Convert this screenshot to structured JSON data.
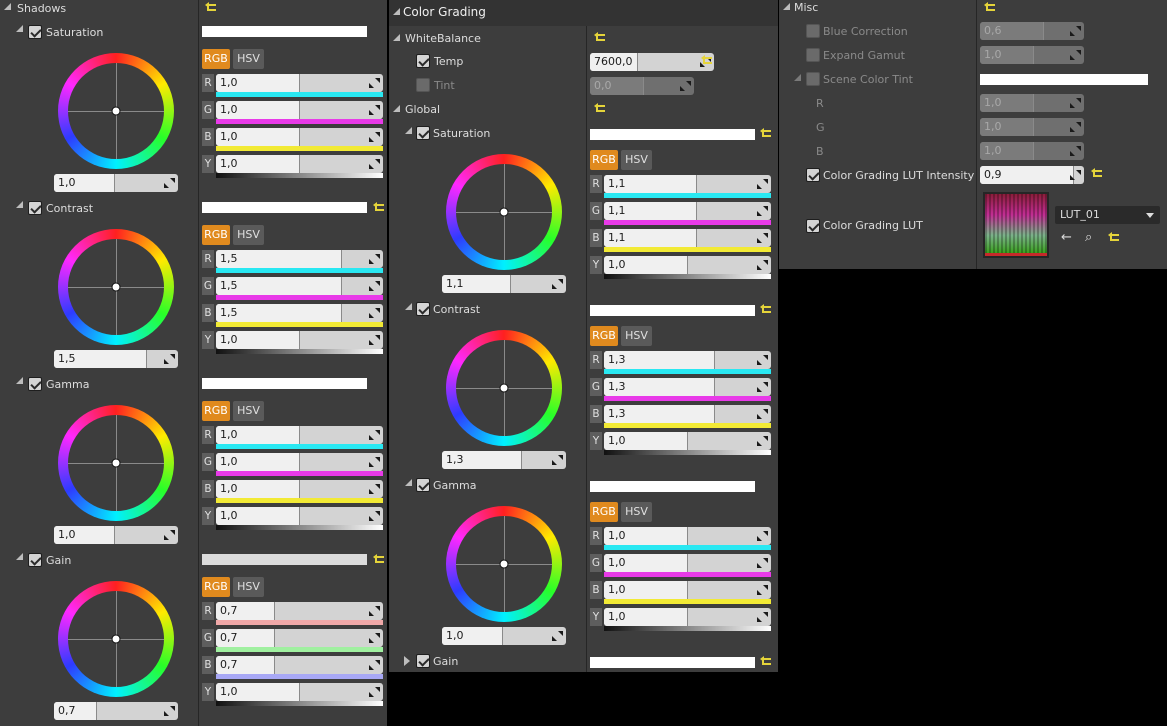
{
  "colors": {
    "accent": "#e08a1e",
    "panel": "#3d3d3d",
    "reset": "#e5d43a"
  },
  "shadows": {
    "title": "Shadows",
    "groups": [
      {
        "name": "Saturation",
        "wheel": "1,0",
        "r": "1,0",
        "g": "1,0",
        "b": "1,0",
        "y": "1,0"
      },
      {
        "name": "Contrast",
        "wheel": "1,5",
        "r": "1,5",
        "g": "1,5",
        "b": "1,5",
        "y": "1,0"
      },
      {
        "name": "Gamma",
        "wheel": "1,0",
        "r": "1,0",
        "g": "1,0",
        "b": "1,0",
        "y": "1,0"
      },
      {
        "name": "Gain",
        "wheel": "0,7",
        "r": "0,7",
        "g": "0,7",
        "b": "0,7",
        "y": "1,0"
      }
    ]
  },
  "mode_rgb": "RGB",
  "mode_hsv": "HSV",
  "channels": {
    "r": "R",
    "g": "G",
    "b": "B",
    "y": "Y"
  },
  "color_grading": {
    "title": "Color Grading",
    "white_balance": {
      "title": "WhiteBalance",
      "temp_label": "Temp",
      "temp_value": "7600,0",
      "tint_label": "Tint",
      "tint_value": "0,0"
    },
    "global_title": "Global",
    "groups": [
      {
        "name": "Saturation",
        "wheel": "1,1",
        "r": "1,1",
        "g": "1,1",
        "b": "1,1",
        "y": "1,0"
      },
      {
        "name": "Contrast",
        "wheel": "1,3",
        "r": "1,3",
        "g": "1,3",
        "b": "1,3",
        "y": "1,0"
      },
      {
        "name": "Gamma",
        "wheel": "1,0",
        "r": "1,0",
        "g": "1,0",
        "b": "1,0",
        "y": "1,0"
      },
      {
        "name": "Gain"
      }
    ]
  },
  "misc": {
    "title": "Misc",
    "blue_correction_label": "Blue Correction",
    "blue_correction_value": "0,6",
    "expand_gamut_label": "Expand Gamut",
    "expand_gamut_value": "1,0",
    "scene_tint_label": "Scene Color Tint",
    "tint_r_label": "R",
    "tint_r": "1,0",
    "tint_g_label": "G",
    "tint_g": "1,0",
    "tint_b_label": "B",
    "tint_b": "1,0",
    "lut_intensity_label": "Color Grading LUT Intensity",
    "lut_intensity_value": "0,9",
    "lut_label": "Color Grading LUT",
    "lut_name": "LUT_01"
  }
}
